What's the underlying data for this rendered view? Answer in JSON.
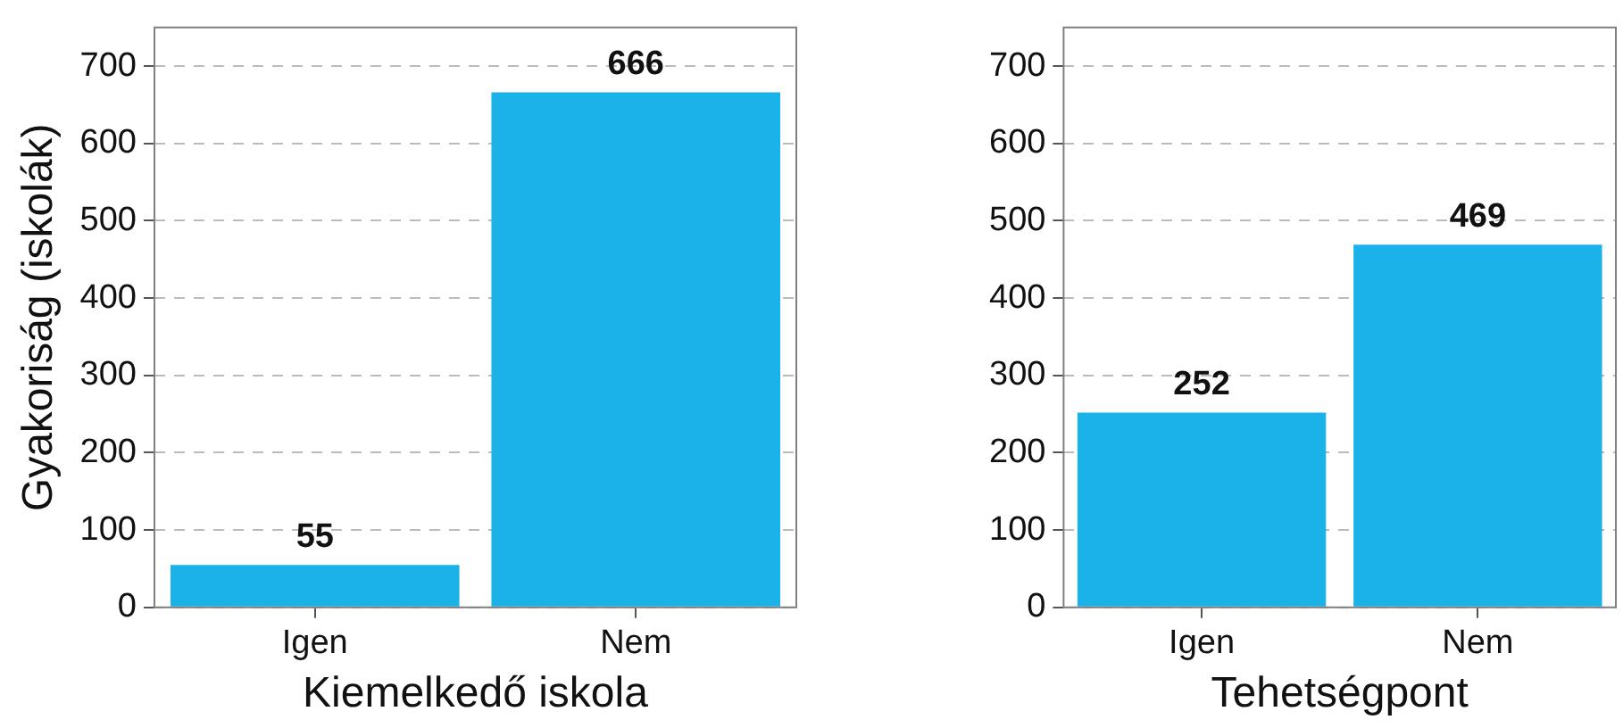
{
  "chart_data": [
    {
      "type": "bar",
      "xlabel": "Kiemelkedő iskola",
      "ylabel": "Gyakoriság (iskolák)",
      "categories": [
        "Igen",
        "Nem"
      ],
      "values": [
        55,
        666
      ],
      "color": "#1ab2e8",
      "ylim": [
        0,
        750
      ],
      "yticks": [
        0,
        100,
        200,
        300,
        400,
        500,
        600,
        700
      ],
      "grid": "y",
      "data_labels": true
    },
    {
      "type": "bar",
      "xlabel": "Tehetségpont",
      "categories": [
        "Igen",
        "Nem"
      ],
      "values": [
        252,
        469
      ],
      "color": "#1ab2e8",
      "ylim": [
        0,
        750
      ],
      "yticks": [
        0,
        100,
        200,
        300,
        400,
        500,
        600,
        700
      ],
      "grid": "y",
      "data_labels": true
    }
  ]
}
